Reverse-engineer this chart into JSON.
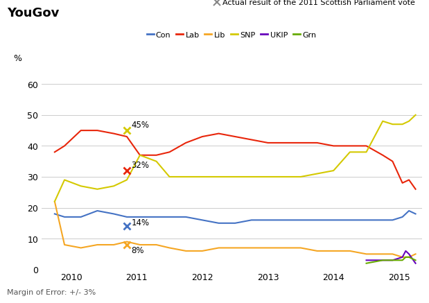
{
  "title": "YouGov",
  "ylabel": "%",
  "footer": "Margin of Error: +/- 3%",
  "legend_marker_label": "Actual result of the 2011 Scottish Parliament vote",
  "ylim": [
    0,
    65
  ],
  "yticks": [
    0,
    10,
    20,
    30,
    40,
    50,
    60
  ],
  "xlim": [
    2009.55,
    2015.35
  ],
  "bg_color": "#ffffff",
  "grid_color": "#cccccc",
  "con_color": "#4472c4",
  "lab_color": "#e8250a",
  "lib_color": "#f5a623",
  "snp_color": "#d4c900",
  "ukip_color": "#6600bb",
  "grn_color": "#66aa00",
  "con_x": [
    2009.75,
    2009.9,
    2010.15,
    2010.4,
    2010.65,
    2010.85,
    2011.05,
    2011.3,
    2011.5,
    2011.75,
    2012.0,
    2012.25,
    2012.5,
    2012.75,
    2013.0,
    2013.25,
    2013.5,
    2013.75,
    2014.0,
    2014.25,
    2014.5,
    2014.75,
    2014.9,
    2015.05,
    2015.15,
    2015.25
  ],
  "con_y": [
    18,
    17,
    17,
    19,
    18,
    17,
    17,
    17,
    17,
    17,
    16,
    15,
    15,
    16,
    16,
    16,
    16,
    16,
    16,
    16,
    16,
    16,
    16,
    17,
    19,
    18
  ],
  "lab_x": [
    2009.75,
    2009.9,
    2010.15,
    2010.4,
    2010.65,
    2010.85,
    2011.05,
    2011.3,
    2011.5,
    2011.75,
    2012.0,
    2012.25,
    2012.5,
    2012.75,
    2013.0,
    2013.25,
    2013.5,
    2013.75,
    2014.0,
    2014.25,
    2014.5,
    2014.75,
    2014.9,
    2015.05,
    2015.15,
    2015.25
  ],
  "lab_y": [
    38,
    40,
    45,
    45,
    44,
    43,
    37,
    37,
    38,
    41,
    43,
    44,
    43,
    42,
    41,
    41,
    41,
    41,
    40,
    40,
    40,
    37,
    35,
    28,
    29,
    26
  ],
  "lib_x": [
    2009.75,
    2009.9,
    2010.15,
    2010.4,
    2010.65,
    2010.85,
    2011.05,
    2011.3,
    2011.5,
    2011.75,
    2012.0,
    2012.25,
    2012.5,
    2012.75,
    2013.0,
    2013.25,
    2013.5,
    2013.75,
    2014.0,
    2014.25,
    2014.5,
    2014.75,
    2014.9,
    2015.05,
    2015.15,
    2015.25
  ],
  "lib_y": [
    22,
    8,
    7,
    8,
    8,
    9,
    8,
    8,
    7,
    6,
    6,
    7,
    7,
    7,
    7,
    7,
    7,
    6,
    6,
    6,
    5,
    5,
    5,
    4,
    4,
    5
  ],
  "snp_x": [
    2009.75,
    2009.9,
    2010.15,
    2010.4,
    2010.65,
    2010.85,
    2011.05,
    2011.3,
    2011.5,
    2011.75,
    2012.0,
    2012.25,
    2012.5,
    2012.75,
    2013.0,
    2013.25,
    2013.5,
    2013.75,
    2014.0,
    2014.25,
    2014.5,
    2014.75,
    2014.9,
    2015.05,
    2015.15,
    2015.25
  ],
  "snp_y": [
    22,
    29,
    27,
    26,
    27,
    29,
    37,
    35,
    30,
    30,
    30,
    30,
    30,
    30,
    30,
    30,
    30,
    31,
    32,
    38,
    38,
    48,
    47,
    47,
    48,
    50
  ],
  "ukip_x": [
    2014.5,
    2014.75,
    2014.9,
    2015.05,
    2015.1,
    2015.15,
    2015.25
  ],
  "ukip_y": [
    3,
    3,
    3,
    4,
    6,
    5,
    2
  ],
  "grn_x": [
    2014.5,
    2014.75,
    2014.9,
    2015.05,
    2015.1,
    2015.15,
    2015.25
  ],
  "grn_y": [
    2,
    3,
    3,
    3,
    4,
    4,
    3
  ],
  "actual_snp_x": 2010.85,
  "actual_snp_y": 45,
  "actual_snp_label": "45%",
  "actual_lab_x": 2010.85,
  "actual_lab_y": 32,
  "actual_lab_label": "32%",
  "actual_con_x": 2010.85,
  "actual_con_y": 14,
  "actual_con_label": "14%",
  "actual_lib_x": 2010.85,
  "actual_lib_y": 8,
  "actual_lib_label": "8%"
}
